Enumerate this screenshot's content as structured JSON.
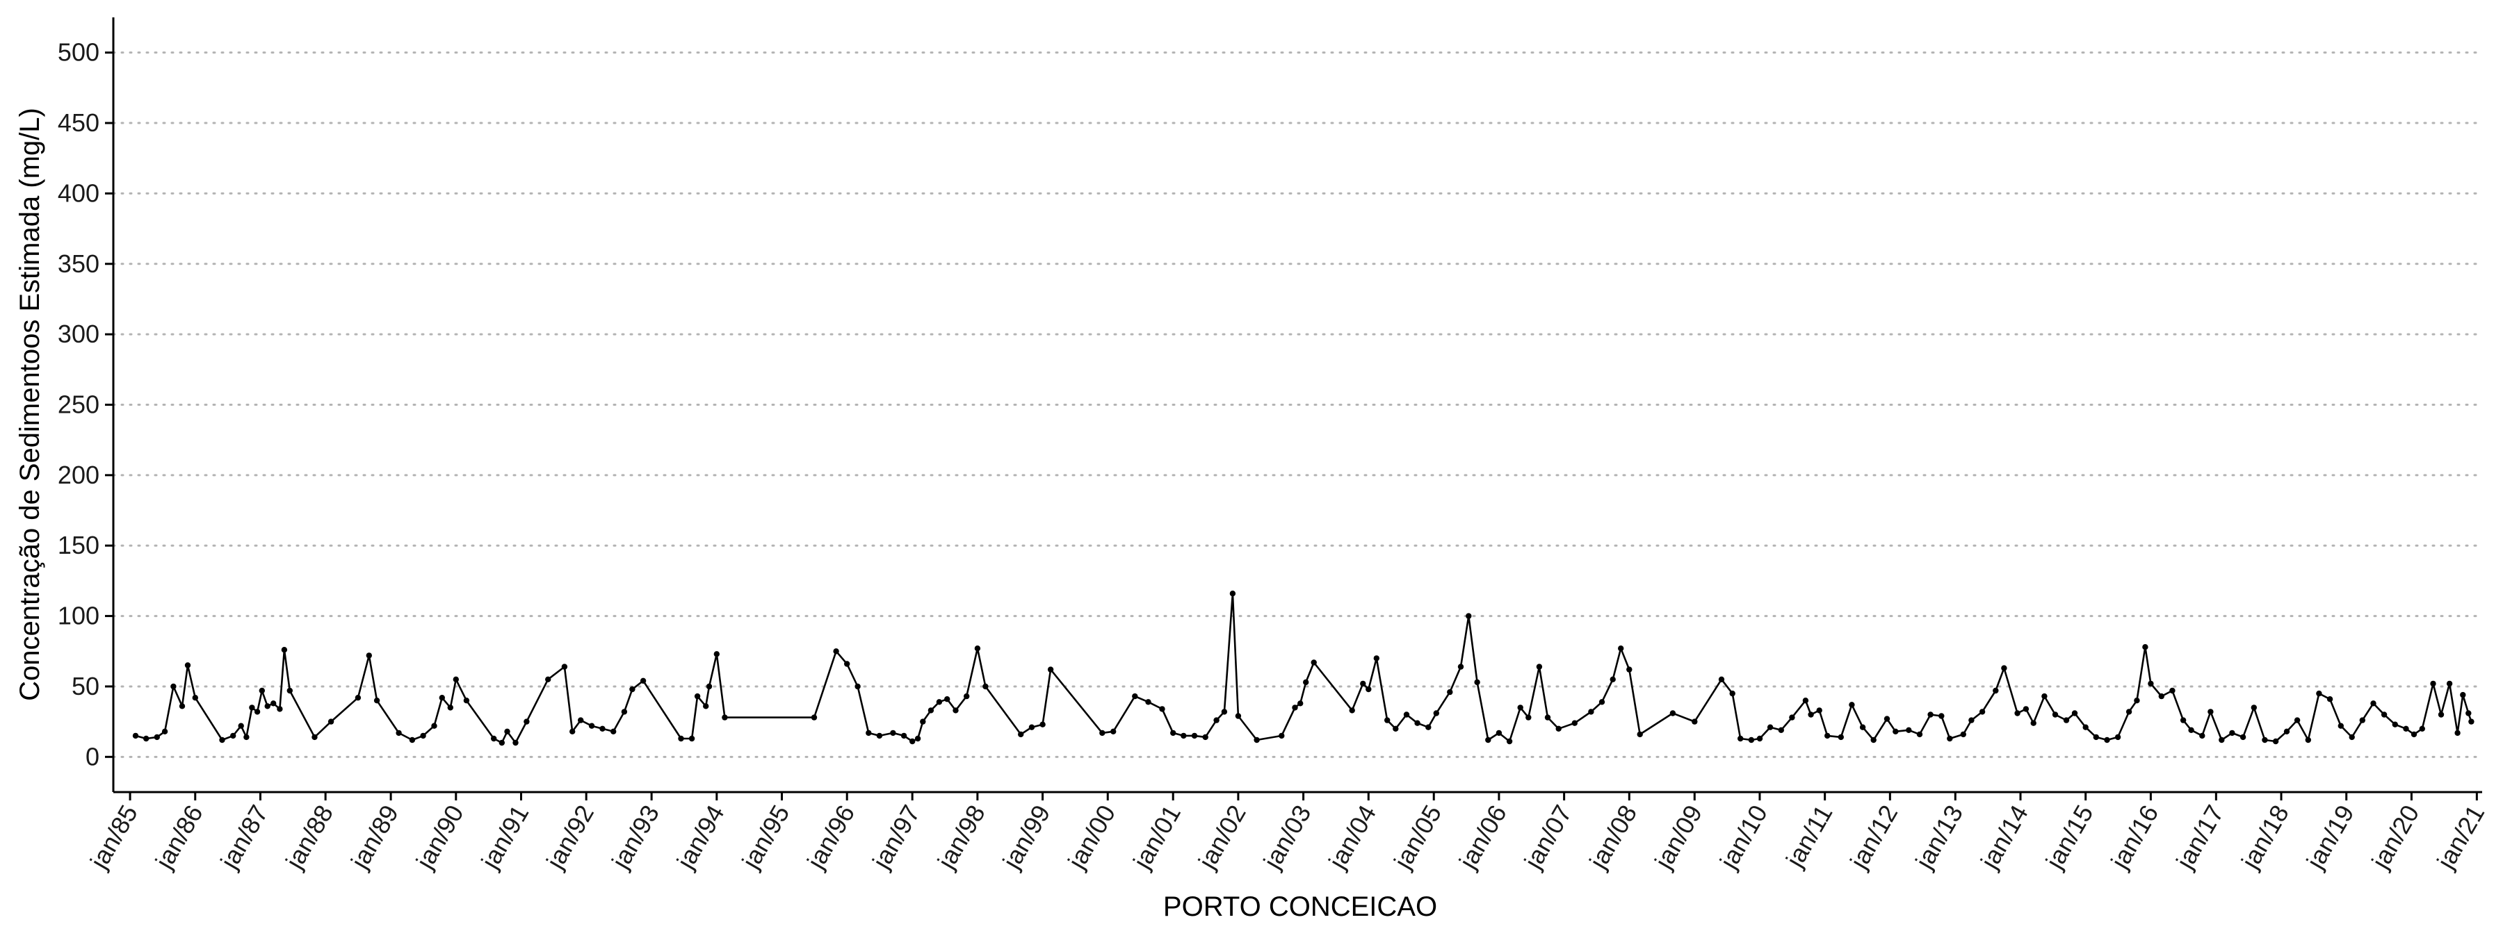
{
  "chart_data": {
    "type": "line",
    "title": "",
    "xlabel": "PORTO CONCEICAO",
    "ylabel": "Concentração de Sedimentoos Estimada (mg/L)",
    "ylim": [
      -25,
      525
    ],
    "xlim": [
      "1984-11-15",
      "2020-12-15"
    ],
    "y_ticks": [
      0,
      50,
      100,
      150,
      200,
      250,
      300,
      350,
      400,
      450,
      500
    ],
    "x_ticks": [
      {
        "date": "1985-01-01",
        "label": "jan/85"
      },
      {
        "date": "1986-01-01",
        "label": "jan/86"
      },
      {
        "date": "1987-01-01",
        "label": "jan/87"
      },
      {
        "date": "1988-01-01",
        "label": "jan/88"
      },
      {
        "date": "1989-01-01",
        "label": "jan/89"
      },
      {
        "date": "1990-01-01",
        "label": "jan/90"
      },
      {
        "date": "1991-01-01",
        "label": "jan/91"
      },
      {
        "date": "1992-01-01",
        "label": "jan/92"
      },
      {
        "date": "1993-01-01",
        "label": "jan/93"
      },
      {
        "date": "1994-01-01",
        "label": "jan/94"
      },
      {
        "date": "1995-01-01",
        "label": "jan/95"
      },
      {
        "date": "1996-01-01",
        "label": "jan/96"
      },
      {
        "date": "1997-01-01",
        "label": "jan/97"
      },
      {
        "date": "1998-01-01",
        "label": "jan/98"
      },
      {
        "date": "1999-01-01",
        "label": "jan/99"
      },
      {
        "date": "2000-01-01",
        "label": "jan/00"
      },
      {
        "date": "2001-01-01",
        "label": "jan/01"
      },
      {
        "date": "2002-01-01",
        "label": "jan/02"
      },
      {
        "date": "2003-01-01",
        "label": "jan/03"
      },
      {
        "date": "2004-01-01",
        "label": "jan/04"
      },
      {
        "date": "2005-01-01",
        "label": "jan/05"
      },
      {
        "date": "2006-01-01",
        "label": "jan/06"
      },
      {
        "date": "2007-01-01",
        "label": "jan/07"
      },
      {
        "date": "2008-01-01",
        "label": "jan/08"
      },
      {
        "date": "2009-01-01",
        "label": "jan/09"
      },
      {
        "date": "2010-01-01",
        "label": "jan/10"
      },
      {
        "date": "2011-01-01",
        "label": "jan/11"
      },
      {
        "date": "2012-01-01",
        "label": "jan/12"
      },
      {
        "date": "2013-01-01",
        "label": "jan/13"
      },
      {
        "date": "2014-01-01",
        "label": "jan/14"
      },
      {
        "date": "2015-01-01",
        "label": "jan/15"
      },
      {
        "date": "2016-01-01",
        "label": "jan/16"
      },
      {
        "date": "2017-01-01",
        "label": "jan/17"
      },
      {
        "date": "2018-01-01",
        "label": "jan/18"
      },
      {
        "date": "2019-01-01",
        "label": "jan/19"
      },
      {
        "date": "2020-01-01",
        "label": "jan/20"
      },
      {
        "date": "2021-01-01",
        "label": "jan/21"
      }
    ],
    "grid": "horizontal dotted",
    "legend": "none",
    "colors": {
      "line": "#000000",
      "point": "#000000",
      "grid": "#b3b3b3",
      "axis": "#000000"
    },
    "series": [
      {
        "points": [
          [
            "1985-02-01",
            15
          ],
          [
            "1985-04-01",
            13
          ],
          [
            "1985-06-01",
            14
          ],
          [
            "1985-07-15",
            18
          ],
          [
            "1985-09-01",
            50
          ],
          [
            "1985-10-20",
            36
          ],
          [
            "1985-11-20",
            65
          ],
          [
            "1986-01-01",
            42
          ],
          [
            "1986-06-01",
            12
          ],
          [
            "1986-08-01",
            15
          ],
          [
            "1986-09-15",
            22
          ],
          [
            "1986-10-15",
            14
          ],
          [
            "1986-11-15",
            35
          ],
          [
            "1986-12-15",
            32
          ],
          [
            "1987-01-10",
            47
          ],
          [
            "1987-02-10",
            36
          ],
          [
            "1987-03-15",
            38
          ],
          [
            "1987-04-20",
            34
          ],
          [
            "1987-05-15",
            76
          ],
          [
            "1987-06-15",
            47
          ],
          [
            "1987-11-01",
            14
          ],
          [
            "1988-02-01",
            25
          ],
          [
            "1988-07-01",
            42
          ],
          [
            "1988-09-01",
            72
          ],
          [
            "1988-10-15",
            40
          ],
          [
            "1989-02-15",
            17
          ],
          [
            "1989-05-01",
            12
          ],
          [
            "1989-07-01",
            15
          ],
          [
            "1989-09-01",
            22
          ],
          [
            "1989-10-15",
            42
          ],
          [
            "1989-12-01",
            35
          ],
          [
            "1990-01-01",
            55
          ],
          [
            "1990-03-01",
            40
          ],
          [
            "1990-08-01",
            13
          ],
          [
            "1990-09-15",
            10
          ],
          [
            "1990-10-15",
            18
          ],
          [
            "1990-12-01",
            10
          ],
          [
            "1991-02-01",
            25
          ],
          [
            "1991-06-01",
            55
          ],
          [
            "1991-09-01",
            64
          ],
          [
            "1991-10-15",
            18
          ],
          [
            "1991-12-01",
            26
          ],
          [
            "1992-02-01",
            22
          ],
          [
            "1992-04-01",
            20
          ],
          [
            "1992-06-01",
            18
          ],
          [
            "1992-08-01",
            32
          ],
          [
            "1992-09-15",
            48
          ],
          [
            "1992-11-15",
            54
          ],
          [
            "1993-06-15",
            13
          ],
          [
            "1993-08-15",
            13
          ],
          [
            "1993-09-15",
            43
          ],
          [
            "1993-11-01",
            36
          ],
          [
            "1993-11-20",
            50
          ],
          [
            "1994-01-01",
            73
          ],
          [
            "1994-02-15",
            28
          ],
          [
            "1995-07-01",
            28
          ],
          [
            "1995-11-01",
            75
          ],
          [
            "1996-01-01",
            66
          ],
          [
            "1996-03-01",
            50
          ],
          [
            "1996-05-01",
            17
          ],
          [
            "1996-07-01",
            15
          ],
          [
            "1996-09-15",
            17
          ],
          [
            "1996-11-15",
            15
          ],
          [
            "1997-01-01",
            11
          ],
          [
            "1997-02-01",
            13
          ],
          [
            "1997-03-01",
            25
          ],
          [
            "1997-04-15",
            33
          ],
          [
            "1997-06-01",
            39
          ],
          [
            "1997-07-15",
            41
          ],
          [
            "1997-09-01",
            33
          ],
          [
            "1997-11-01",
            43
          ],
          [
            "1998-01-01",
            77
          ],
          [
            "1998-02-15",
            50
          ],
          [
            "1998-09-01",
            16
          ],
          [
            "1998-11-01",
            21
          ],
          [
            "1999-01-01",
            23
          ],
          [
            "1999-02-15",
            62
          ],
          [
            "1999-12-01",
            17
          ],
          [
            "2000-02-01",
            18
          ],
          [
            "2000-06-01",
            43
          ],
          [
            "2000-08-15",
            39
          ],
          [
            "2000-11-01",
            34
          ],
          [
            "2001-01-01",
            17
          ],
          [
            "2001-03-01",
            15
          ],
          [
            "2001-05-01",
            15
          ],
          [
            "2001-07-01",
            14
          ],
          [
            "2001-09-01",
            26
          ],
          [
            "2001-10-15",
            32
          ],
          [
            "2001-12-01",
            116
          ],
          [
            "2002-01-01",
            29
          ],
          [
            "2002-04-15",
            12
          ],
          [
            "2002-09-01",
            15
          ],
          [
            "2002-11-15",
            35
          ],
          [
            "2002-12-15",
            38
          ],
          [
            "2003-01-15",
            53
          ],
          [
            "2003-03-01",
            67
          ],
          [
            "2003-10-01",
            33
          ],
          [
            "2003-12-01",
            52
          ],
          [
            "2004-01-01",
            48
          ],
          [
            "2004-02-15",
            70
          ],
          [
            "2004-04-15",
            26
          ],
          [
            "2004-06-01",
            20
          ],
          [
            "2004-08-01",
            30
          ],
          [
            "2004-10-01",
            24
          ],
          [
            "2004-12-01",
            21
          ],
          [
            "2005-01-15",
            31
          ],
          [
            "2005-04-01",
            46
          ],
          [
            "2005-06-01",
            64
          ],
          [
            "2005-07-15",
            100
          ],
          [
            "2005-09-01",
            53
          ],
          [
            "2005-11-01",
            12
          ],
          [
            "2006-01-01",
            17
          ],
          [
            "2006-03-01",
            11
          ],
          [
            "2006-05-01",
            35
          ],
          [
            "2006-06-15",
            28
          ],
          [
            "2006-08-15",
            64
          ],
          [
            "2006-10-01",
            28
          ],
          [
            "2006-12-01",
            20
          ],
          [
            "2007-03-01",
            24
          ],
          [
            "2007-06-01",
            32
          ],
          [
            "2007-08-01",
            39
          ],
          [
            "2007-10-01",
            55
          ],
          [
            "2007-11-15",
            77
          ],
          [
            "2008-01-01",
            62
          ],
          [
            "2008-03-01",
            16
          ],
          [
            "2008-09-01",
            31
          ],
          [
            "2009-01-01",
            25
          ],
          [
            "2009-06-01",
            55
          ],
          [
            "2009-08-01",
            45
          ],
          [
            "2009-09-15",
            13
          ],
          [
            "2009-11-15",
            12
          ],
          [
            "2010-01-01",
            13
          ],
          [
            "2010-03-01",
            21
          ],
          [
            "2010-05-01",
            19
          ],
          [
            "2010-07-01",
            28
          ],
          [
            "2010-09-15",
            40
          ],
          [
            "2010-10-15",
            30
          ],
          [
            "2010-12-01",
            33
          ],
          [
            "2011-01-15",
            15
          ],
          [
            "2011-04-01",
            14
          ],
          [
            "2011-06-01",
            37
          ],
          [
            "2011-08-01",
            21
          ],
          [
            "2011-10-01",
            12
          ],
          [
            "2011-12-15",
            27
          ],
          [
            "2012-02-01",
            18
          ],
          [
            "2012-04-15",
            19
          ],
          [
            "2012-06-15",
            16
          ],
          [
            "2012-08-15",
            30
          ],
          [
            "2012-10-15",
            29
          ],
          [
            "2012-12-01",
            13
          ],
          [
            "2013-02-15",
            16
          ],
          [
            "2013-04-01",
            26
          ],
          [
            "2013-06-01",
            32
          ],
          [
            "2013-08-15",
            47
          ],
          [
            "2013-10-01",
            63
          ],
          [
            "2013-12-15",
            31
          ],
          [
            "2014-02-01",
            34
          ],
          [
            "2014-03-15",
            24
          ],
          [
            "2014-05-15",
            43
          ],
          [
            "2014-07-15",
            30
          ],
          [
            "2014-09-15",
            26
          ],
          [
            "2014-11-01",
            31
          ],
          [
            "2015-01-01",
            21
          ],
          [
            "2015-03-01",
            14
          ],
          [
            "2015-05-01",
            12
          ],
          [
            "2015-07-01",
            14
          ],
          [
            "2015-09-01",
            32
          ],
          [
            "2015-10-15",
            40
          ],
          [
            "2015-12-01",
            78
          ],
          [
            "2016-01-01",
            52
          ],
          [
            "2016-03-01",
            43
          ],
          [
            "2016-05-01",
            47
          ],
          [
            "2016-07-01",
            26
          ],
          [
            "2016-08-15",
            19
          ],
          [
            "2016-10-15",
            15
          ],
          [
            "2016-12-01",
            32
          ],
          [
            "2017-02-01",
            12
          ],
          [
            "2017-04-01",
            17
          ],
          [
            "2017-06-01",
            14
          ],
          [
            "2017-08-01",
            35
          ],
          [
            "2017-10-01",
            12
          ],
          [
            "2017-12-01",
            11
          ],
          [
            "2018-02-01",
            18
          ],
          [
            "2018-04-01",
            26
          ],
          [
            "2018-06-01",
            12
          ],
          [
            "2018-08-01",
            45
          ],
          [
            "2018-10-01",
            41
          ],
          [
            "2018-12-01",
            22
          ],
          [
            "2019-02-01",
            14
          ],
          [
            "2019-04-01",
            26
          ],
          [
            "2019-06-01",
            38
          ],
          [
            "2019-08-01",
            30
          ],
          [
            "2019-10-01",
            23
          ],
          [
            "2019-12-01",
            20
          ],
          [
            "2020-01-15",
            16
          ],
          [
            "2020-03-01",
            20
          ],
          [
            "2020-05-01",
            52
          ],
          [
            "2020-06-15",
            30
          ],
          [
            "2020-08-01",
            52
          ],
          [
            "2020-09-15",
            17
          ],
          [
            "2020-10-15",
            44
          ],
          [
            "2020-11-15",
            31
          ],
          [
            "2020-12-01",
            25
          ]
        ]
      }
    ]
  }
}
